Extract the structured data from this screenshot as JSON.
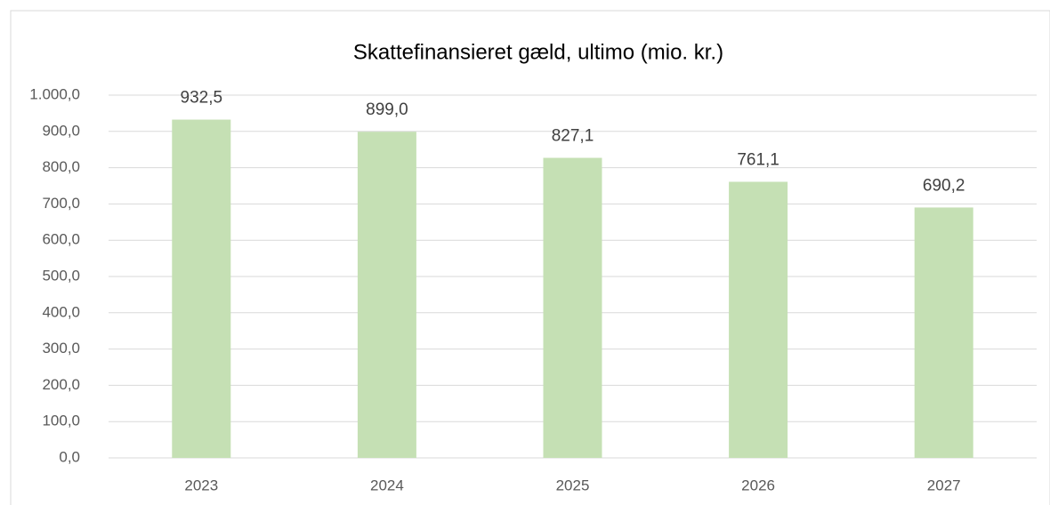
{
  "chart_data": {
    "type": "bar",
    "title": "Skattefinansieret gæld, ultimo (mio. kr.)",
    "categories": [
      "2023",
      "2024",
      "2025",
      "2026",
      "2027"
    ],
    "values": [
      932.5,
      899.0,
      827.1,
      761.1,
      690.2
    ],
    "value_labels": [
      "932,5",
      "899,0",
      "827,1",
      "761,1",
      "690,2"
    ],
    "color": "#c5e0b4",
    "ylim": [
      0,
      1000
    ],
    "yticks": [
      {
        "value": 0,
        "label": "0,0"
      },
      {
        "value": 100,
        "label": "100,0"
      },
      {
        "value": 200,
        "label": "200,0"
      },
      {
        "value": 300,
        "label": "300,0"
      },
      {
        "value": 400,
        "label": "400,0"
      },
      {
        "value": 500,
        "label": "500,0"
      },
      {
        "value": 600,
        "label": "600,0"
      },
      {
        "value": 700,
        "label": "700,0"
      },
      {
        "value": 800,
        "label": "800,0"
      },
      {
        "value": 900,
        "label": "900,0"
      },
      {
        "value": 1000,
        "label": "1.000,0"
      }
    ],
    "grid": true
  }
}
